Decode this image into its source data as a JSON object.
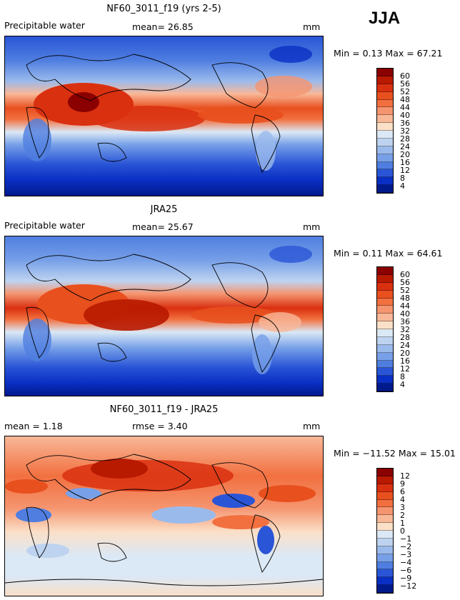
{
  "season": "JJA",
  "panels": [
    {
      "title": "NF60_3011_f19 (yrs 2-5)",
      "left_label": "Precipitable water",
      "mean_text": "mean=   26.85",
      "unit": "mm",
      "minmax": "Min =    0.13  Max =   67.21",
      "scale": "pw"
    },
    {
      "title": "JRA25",
      "left_label": "Precipitable water",
      "mean_text": "mean=   25.67",
      "unit": "mm",
      "minmax": "Min =    0.11  Max =   64.61",
      "scale": "pw"
    },
    {
      "title": "NF60_3011_f19 - JRA25",
      "left_label": "mean =    1.18",
      "mean_text": "rmse =    3.40",
      "unit": "mm",
      "minmax": "Min = −11.52  Max =   15.01",
      "scale": "diff"
    }
  ],
  "colorbars": {
    "pw": {
      "labels": [
        "60",
        "56",
        "52",
        "48",
        "44",
        "40",
        "36",
        "32",
        "28",
        "24",
        "20",
        "16",
        "12",
        "8",
        "4"
      ],
      "colors": [
        "#8b0000",
        "#b81a00",
        "#d93010",
        "#e8501e",
        "#f27040",
        "#f59570",
        "#f8b898",
        "#fbe0c8",
        "#dbe8f5",
        "#bed3f0",
        "#9bbaec",
        "#77a0e8",
        "#4f7ee0",
        "#2a55d6",
        "#0a2fc4",
        "#001a8c"
      ]
    },
    "diff": {
      "labels": [
        "12",
        "9",
        "6",
        "4",
        "3",
        "2",
        "1",
        "0",
        "−1",
        "−2",
        "−3",
        "−4",
        "−6",
        "−9",
        "−12"
      ],
      "colors": [
        "#8b0000",
        "#b81a00",
        "#d93010",
        "#e8501e",
        "#f27040",
        "#f59570",
        "#f8b898",
        "#fbe0c8",
        "#dbe8f5",
        "#bed3f0",
        "#9bbaec",
        "#77a0e8",
        "#4f7ee0",
        "#2a55d6",
        "#0a2fc4",
        "#001a8c"
      ]
    }
  },
  "chart_data": [
    {
      "type": "heatmap",
      "title": "NF60_3011_f19 (yrs 2-5)",
      "variable": "Precipitable water",
      "units": "mm",
      "season": "JJA",
      "mean": 26.85,
      "min": 0.13,
      "max": 67.21,
      "contour_levels": [
        4,
        8,
        12,
        16,
        20,
        24,
        28,
        32,
        36,
        40,
        44,
        48,
        52,
        56,
        60
      ]
    },
    {
      "type": "heatmap",
      "title": "JRA25",
      "variable": "Precipitable water",
      "units": "mm",
      "season": "JJA",
      "mean": 25.67,
      "min": 0.11,
      "max": 64.61,
      "contour_levels": [
        4,
        8,
        12,
        16,
        20,
        24,
        28,
        32,
        36,
        40,
        44,
        48,
        52,
        56,
        60
      ]
    },
    {
      "type": "heatmap",
      "title": "NF60_3011_f19 - JRA25",
      "units": "mm",
      "season": "JJA",
      "mean": 1.18,
      "rmse": 3.4,
      "min": -11.52,
      "max": 15.01,
      "contour_levels": [
        -12,
        -9,
        -6,
        -4,
        -3,
        -2,
        -1,
        0,
        1,
        2,
        3,
        4,
        6,
        9,
        12
      ]
    }
  ]
}
